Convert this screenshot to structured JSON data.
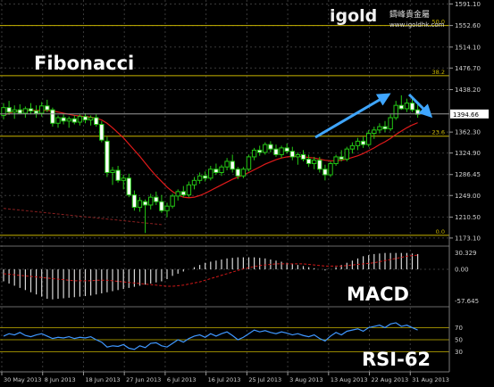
{
  "chart_data": {
    "type": "candlestick",
    "watermark": {
      "brand": "igold",
      "chinese": "鑄峰貴金屬",
      "url": "www.igoldhk.com"
    },
    "labels": {
      "main": "Fibonacci",
      "macd": "MACD",
      "rsi": "RSI-62"
    },
    "price_axis": {
      "ylim": [
        1165,
        1595
      ],
      "ticks": [
        1591.1,
        1552.6,
        1514.1,
        1476.7,
        1438.2,
        1362.3,
        1324.9,
        1286.45,
        1249.0,
        1210.5,
        1173.1
      ],
      "tick_labels": [
        "1591.10",
        "1552.60",
        "1514.10",
        "1476.70",
        "1438.20",
        "1362.30",
        "1324.90",
        "1286.45",
        "1249.00",
        "1210.50",
        "1173.10"
      ],
      "current_price": 1394.66,
      "current_label": "1394.66"
    },
    "fibonacci_levels": [
      {
        "label": "50.0",
        "price": 1552.6
      },
      {
        "label": "38.2",
        "price": 1463.0
      },
      {
        "label": "23.6",
        "price": 1355.0
      },
      {
        "label": "0.0",
        "price": 1178.0
      }
    ],
    "x_labels": [
      "30 May 2013",
      "8 Jun 2013",
      "18 Jun 2013",
      "27 Jun 2013",
      "6 Jul 2013",
      "16 Jul 2013",
      "25 Jul 2013",
      "3 Aug 2013",
      "13 Aug 2013",
      "22 Aug 2013",
      "31 Aug 2013"
    ],
    "candles": [
      [
        1392,
        1414,
        1385,
        1406
      ],
      [
        1406,
        1418,
        1393,
        1398
      ],
      [
        1398,
        1410,
        1386,
        1402
      ],
      [
        1402,
        1412,
        1394,
        1396
      ],
      [
        1396,
        1408,
        1388,
        1404
      ],
      [
        1404,
        1414,
        1394,
        1400
      ],
      [
        1400,
        1410,
        1388,
        1396
      ],
      [
        1396,
        1416,
        1390,
        1409
      ],
      [
        1409,
        1420,
        1398,
        1402
      ],
      [
        1402,
        1406,
        1372,
        1378
      ],
      [
        1378,
        1392,
        1370,
        1388
      ],
      [
        1388,
        1394,
        1376,
        1382
      ],
      [
        1382,
        1390,
        1370,
        1386
      ],
      [
        1386,
        1392,
        1376,
        1380
      ],
      [
        1380,
        1394,
        1374,
        1390
      ],
      [
        1390,
        1396,
        1378,
        1384
      ],
      [
        1384,
        1392,
        1374,
        1388
      ],
      [
        1388,
        1394,
        1372,
        1376
      ],
      [
        1376,
        1382,
        1344,
        1348
      ],
      [
        1346,
        1354,
        1282,
        1290
      ],
      [
        1290,
        1300,
        1268,
        1294
      ],
      [
        1294,
        1302,
        1272,
        1276
      ],
      [
        1276,
        1286,
        1260,
        1280
      ],
      [
        1280,
        1288,
        1246,
        1250
      ],
      [
        1250,
        1258,
        1222,
        1228
      ],
      [
        1228,
        1246,
        1220,
        1240
      ],
      [
        1238,
        1242,
        1182,
        1232
      ],
      [
        1232,
        1252,
        1224,
        1246
      ],
      [
        1246,
        1256,
        1232,
        1238
      ],
      [
        1238,
        1250,
        1218,
        1222
      ],
      [
        1222,
        1236,
        1210,
        1230
      ],
      [
        1230,
        1252,
        1226,
        1248
      ],
      [
        1248,
        1260,
        1240,
        1256
      ],
      [
        1256,
        1266,
        1246,
        1250
      ],
      [
        1250,
        1274,
        1246,
        1268
      ],
      [
        1268,
        1282,
        1260,
        1276
      ],
      [
        1276,
        1290,
        1270,
        1284
      ],
      [
        1284,
        1292,
        1274,
        1280
      ],
      [
        1280,
        1302,
        1276,
        1296
      ],
      [
        1296,
        1306,
        1286,
        1290
      ],
      [
        1290,
        1304,
        1284,
        1300
      ],
      [
        1300,
        1316,
        1294,
        1310
      ],
      [
        1310,
        1322,
        1290,
        1296
      ],
      [
        1296,
        1300,
        1278,
        1284
      ],
      [
        1284,
        1300,
        1280,
        1296
      ],
      [
        1296,
        1322,
        1292,
        1318
      ],
      [
        1318,
        1334,
        1312,
        1330
      ],
      [
        1330,
        1338,
        1320,
        1326
      ],
      [
        1326,
        1344,
        1322,
        1340
      ],
      [
        1340,
        1346,
        1326,
        1332
      ],
      [
        1332,
        1340,
        1318,
        1322
      ],
      [
        1322,
        1338,
        1316,
        1334
      ],
      [
        1334,
        1342,
        1324,
        1328
      ],
      [
        1328,
        1336,
        1312,
        1318
      ],
      [
        1318,
        1326,
        1304,
        1322
      ],
      [
        1322,
        1330,
        1310,
        1314
      ],
      [
        1314,
        1322,
        1300,
        1306
      ],
      [
        1306,
        1318,
        1296,
        1312
      ],
      [
        1312,
        1318,
        1290,
        1296
      ],
      [
        1296,
        1304,
        1276,
        1286
      ],
      [
        1286,
        1310,
        1282,
        1306
      ],
      [
        1306,
        1322,
        1302,
        1318
      ],
      [
        1318,
        1330,
        1310,
        1314
      ],
      [
        1314,
        1336,
        1310,
        1332
      ],
      [
        1332,
        1344,
        1324,
        1338
      ],
      [
        1338,
        1352,
        1330,
        1346
      ],
      [
        1346,
        1354,
        1334,
        1340
      ],
      [
        1340,
        1366,
        1336,
        1360
      ],
      [
        1360,
        1372,
        1350,
        1366
      ],
      [
        1366,
        1378,
        1360,
        1372
      ],
      [
        1372,
        1382,
        1362,
        1368
      ],
      [
        1368,
        1394,
        1364,
        1388
      ],
      [
        1388,
        1418,
        1384,
        1410
      ],
      [
        1410,
        1428,
        1402,
        1404
      ],
      [
        1404,
        1422,
        1398,
        1414
      ],
      [
        1414,
        1426,
        1398,
        1402
      ],
      [
        1402,
        1412,
        1388,
        1394
      ]
    ],
    "moving_average_red": [
      1392,
      1396,
      1399,
      1400,
      1401,
      1401,
      1401,
      1401,
      1401,
      1400,
      1398,
      1396,
      1394,
      1392,
      1391,
      1390,
      1389,
      1387,
      1384,
      1378,
      1370,
      1361,
      1352,
      1341,
      1330,
      1319,
      1307,
      1295,
      1284,
      1274,
      1264,
      1256,
      1250,
      1246,
      1245,
      1246,
      1249,
      1253,
      1258,
      1263,
      1268,
      1273,
      1278,
      1282,
      1286,
      1290,
      1295,
      1300,
      1305,
      1309,
      1313,
      1316,
      1318,
      1319,
      1319,
      1318,
      1317,
      1316,
      1314,
      1312,
      1311,
      1311,
      1312,
      1314,
      1317,
      1320,
      1324,
      1329,
      1334,
      1340,
      1345,
      1351,
      1358,
      1364,
      1370,
      1375,
      1379
    ],
    "moving_average_brown": [
      1226,
      1225,
      1224,
      1223,
      1222,
      1221,
      1220,
      1219,
      1218,
      1217,
      1216,
      1215,
      1214,
      1213,
      1212,
      1211,
      1210,
      1209,
      1208,
      1207,
      1206,
      1205,
      1204,
      1203,
      1202,
      1201,
      1200,
      1199,
      1198,
      1197
    ],
    "macd": {
      "tick_labels": [
        "30.329",
        "0.00",
        "-57.645"
      ],
      "ylim": [
        -62,
        36
      ],
      "signal": [
        -8,
        -9,
        -10,
        -11,
        -12,
        -13,
        -14,
        -15,
        -16,
        -17,
        -18,
        -19,
        -20,
        -21,
        -21,
        -21,
        -21,
        -20,
        -20,
        -20,
        -21,
        -22,
        -23,
        -24,
        -25,
        -26,
        -27,
        -28,
        -29,
        -30,
        -31,
        -31,
        -30,
        -29,
        -27,
        -25,
        -23,
        -20,
        -17,
        -14,
        -11,
        -8,
        -5,
        -2,
        1,
        3,
        5,
        7,
        8,
        9,
        10,
        10,
        10,
        10,
        10,
        10,
        9,
        8,
        7,
        6,
        6,
        6,
        6,
        7,
        8,
        9,
        10,
        11,
        12,
        14,
        16,
        18,
        20,
        22,
        24,
        25,
        26
      ],
      "histogram": [
        -22,
        -26,
        -30,
        -34,
        -38,
        -42,
        -46,
        -50,
        -54,
        -55,
        -54,
        -53,
        -52,
        -51,
        -50,
        -49,
        -48,
        -46,
        -44,
        -42,
        -40,
        -38,
        -36,
        -34,
        -32,
        -30,
        -28,
        -26,
        -24,
        -22,
        -18,
        -12,
        -8,
        -4,
        0,
        4,
        8,
        12,
        14,
        16,
        18,
        20,
        21,
        22,
        22,
        22,
        22,
        21,
        20,
        18,
        16,
        14,
        12,
        10,
        8,
        6,
        4,
        2,
        0,
        -2,
        0,
        4,
        8,
        12,
        16,
        20,
        24,
        26,
        28,
        29,
        30,
        30,
        30,
        30,
        30,
        29,
        28
      ]
    },
    "rsi": {
      "tick_labels": [
        "70",
        "50",
        "30"
      ],
      "levels": [
        70,
        50,
        30
      ],
      "ylim": [
        0,
        100
      ],
      "values": [
        56,
        60,
        58,
        62,
        57,
        55,
        58,
        60,
        56,
        52,
        54,
        53,
        55,
        52,
        54,
        53,
        55,
        50,
        46,
        38,
        40,
        39,
        42,
        36,
        34,
        40,
        37,
        44,
        45,
        40,
        38,
        44,
        50,
        46,
        52,
        56,
        58,
        54,
        60,
        56,
        60,
        63,
        57,
        50,
        54,
        60,
        66,
        63,
        65,
        62,
        60,
        63,
        61,
        58,
        60,
        57,
        55,
        58,
        52,
        48,
        56,
        62,
        58,
        64,
        66,
        68,
        64,
        70,
        72,
        74,
        70,
        76,
        78,
        72,
        74,
        70,
        66
      ]
    }
  }
}
